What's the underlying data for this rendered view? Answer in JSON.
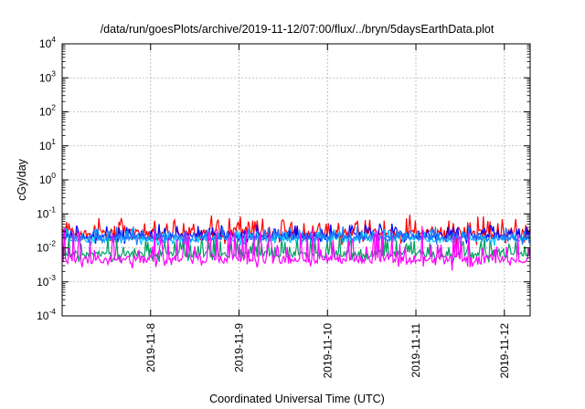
{
  "chart_data": {
    "type": "line",
    "title": "/data/run/goesPlots/archive/2019-11-12/07:00/flux/../bryn/5daysEarthData.plot",
    "xlabel": "Coordinated Universal Time (UTC)",
    "ylabel": "cGy/day",
    "yscale": "log",
    "ylim": [
      0.0001,
      10000
    ],
    "yticks": [
      {
        "base": "10",
        "exp": "-4"
      },
      {
        "base": "10",
        "exp": "-3"
      },
      {
        "base": "10",
        "exp": "-2"
      },
      {
        "base": "10",
        "exp": "-1"
      },
      {
        "base": "10",
        "exp": "0"
      },
      {
        "base": "10",
        "exp": "1"
      },
      {
        "base": "10",
        "exp": "2"
      },
      {
        "base": "10",
        "exp": "3"
      },
      {
        "base": "10",
        "exp": "4"
      }
    ],
    "xlim": [
      "2019-11-07T00:00",
      "2019-11-12T07:00"
    ],
    "xticks": [
      {
        "label": "2019-11-8",
        "date": "2019-11-08T00:00"
      },
      {
        "label": "2019-11-9",
        "date": "2019-11-09T00:00"
      },
      {
        "label": "2019-11-10",
        "date": "2019-11-10T00:00"
      },
      {
        "label": "2019-11-11",
        "date": "2019-11-11T00:00"
      },
      {
        "label": "2019-11-12",
        "date": "2019-11-12T00:00"
      }
    ],
    "grid": true,
    "series": [
      {
        "color": "#ff0000",
        "base": 0.026,
        "spread": 0.55,
        "spikes": 0.75
      },
      {
        "color": "#0000ff",
        "base": 0.022,
        "spread": 0.35,
        "spikes": 0.5
      },
      {
        "color": "#00a060",
        "base": 0.0065,
        "spread": 0.35,
        "spikes": 0.9
      },
      {
        "color": "#00c0ff",
        "base": 0.018,
        "spread": 0.3,
        "spikes": 0.5
      },
      {
        "color": "#1e78ff",
        "base": 0.02,
        "spread": 0.3,
        "spikes": 0.5
      },
      {
        "color": "#ff00ff",
        "base": 0.0045,
        "spread": 0.45,
        "spikes": 1.5
      }
    ]
  }
}
